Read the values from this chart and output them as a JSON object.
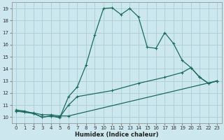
{
  "xlabel": "Humidex (Indice chaleur)",
  "bg_color": "#cce8ee",
  "line_color": "#1a6b5a",
  "grid_color_major": "#aacdd6",
  "grid_color_minor": "#cce0e6",
  "xlim": [
    -0.5,
    23.5
  ],
  "ylim": [
    9.5,
    19.5
  ],
  "xticks": [
    0,
    1,
    2,
    3,
    4,
    5,
    6,
    7,
    8,
    9,
    10,
    11,
    12,
    13,
    14,
    15,
    16,
    17,
    18,
    19,
    20,
    21,
    22,
    23
  ],
  "yticks": [
    10,
    11,
    12,
    13,
    14,
    15,
    16,
    17,
    18,
    19
  ],
  "line1_x": [
    0,
    1,
    2,
    3,
    4,
    5,
    6,
    7,
    8,
    9,
    10,
    11,
    12,
    13,
    14,
    15,
    16,
    17,
    18,
    19,
    20,
    21,
    22,
    23
  ],
  "line1_y": [
    10.6,
    10.5,
    10.3,
    10.0,
    10.1,
    9.95,
    11.7,
    12.5,
    14.3,
    16.8,
    19.0,
    19.05,
    18.5,
    19.0,
    18.3,
    15.8,
    15.7,
    17.0,
    16.1,
    14.7,
    14.1,
    13.3,
    12.8,
    13.0
  ],
  "line2_x": [
    0,
    2,
    3,
    4,
    5,
    6,
    7,
    11,
    14,
    17,
    19,
    20,
    21,
    22,
    23
  ],
  "line2_y": [
    10.5,
    10.3,
    10.0,
    10.1,
    10.0,
    11.0,
    11.7,
    12.2,
    12.8,
    13.3,
    13.7,
    14.1,
    13.3,
    12.8,
    13.0
  ],
  "line3_x": [
    0,
    1,
    2,
    3,
    4,
    5,
    6,
    23
  ],
  "line3_y": [
    10.5,
    10.45,
    10.35,
    10.2,
    10.2,
    10.1,
    10.1,
    13.0
  ]
}
